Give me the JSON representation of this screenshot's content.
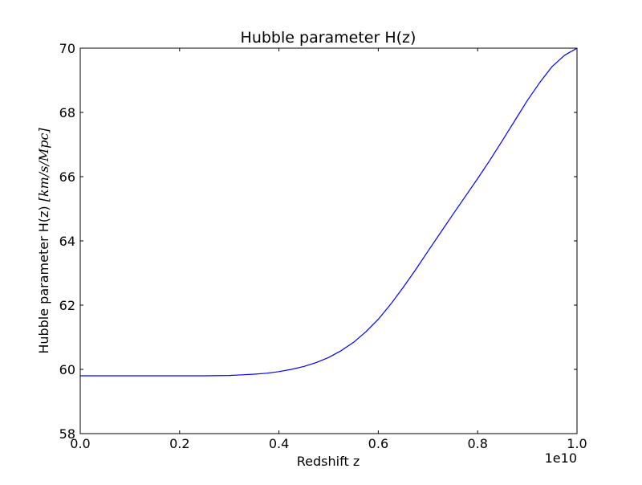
{
  "chart_data": {
    "type": "line",
    "title": "Hubble parameter H(z)",
    "xlabel": "Redshift z",
    "ylabel_prefix": "Hubble parameter H(z) ",
    "ylabel_units": "[km/s/Mpc]",
    "x_offset_label": "1e10",
    "xlim": [
      0.0,
      1.0
    ],
    "ylim": [
      58,
      70
    ],
    "x_ticks": [
      0.0,
      0.2,
      0.4,
      0.6,
      0.8,
      1.0
    ],
    "x_tick_labels": [
      "0.0",
      "0.2",
      "0.4",
      "0.6",
      "0.8",
      "1.0"
    ],
    "y_ticks": [
      58,
      60,
      62,
      64,
      66,
      68,
      70
    ],
    "y_tick_labels": [
      "58",
      "60",
      "62",
      "64",
      "66",
      "68",
      "70"
    ],
    "grid": false,
    "legend": "none",
    "series_color": "#0000ff",
    "series": [
      {
        "x": [
          0.0,
          0.05,
          0.1,
          0.15,
          0.2,
          0.25,
          0.3,
          0.325,
          0.35,
          0.375,
          0.4,
          0.425,
          0.45,
          0.475,
          0.5,
          0.525,
          0.55,
          0.575,
          0.6,
          0.625,
          0.65,
          0.675,
          0.7,
          0.725,
          0.75,
          0.775,
          0.8,
          0.825,
          0.85,
          0.875,
          0.9,
          0.925,
          0.95,
          0.975,
          1.0
        ],
        "values": [
          59.8,
          59.8,
          59.8,
          59.8,
          59.8,
          59.8,
          59.81,
          59.83,
          59.85,
          59.88,
          59.93,
          60.0,
          60.09,
          60.21,
          60.37,
          60.58,
          60.84,
          61.17,
          61.56,
          62.03,
          62.55,
          63.1,
          63.68,
          64.25,
          64.82,
          65.38,
          65.94,
          66.52,
          67.13,
          67.75,
          68.37,
          68.93,
          69.43,
          69.78,
          70.0
        ]
      }
    ]
  }
}
